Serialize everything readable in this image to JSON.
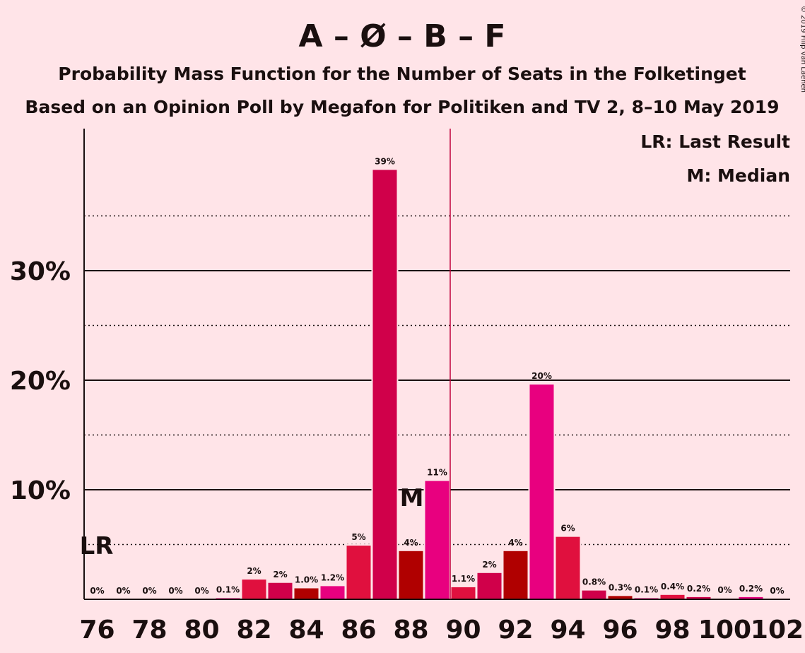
{
  "chart_data": {
    "type": "bar",
    "title": "A – Ø – B – F",
    "subtitle1": "Probability Mass Function for the Number of Seats in the Folketinget",
    "subtitle2": "Based on an Opinion Poll by Megafon for Politiken and TV 2, 8–10 May 2019",
    "copyright": "© 2019 Filip van Laenen",
    "legend": {
      "lr": "LR: Last Result",
      "m": "M: Median",
      "placement": "top-right"
    },
    "x": [
      76,
      77,
      78,
      79,
      80,
      81,
      82,
      83,
      84,
      85,
      86,
      87,
      88,
      89,
      90,
      91,
      92,
      93,
      94,
      95,
      96,
      97,
      98,
      99,
      100,
      101,
      102
    ],
    "values": [
      0,
      0,
      0,
      0,
      0,
      0.1,
      1.8,
      1.5,
      1.0,
      1.2,
      4.9,
      39.2,
      4.4,
      10.8,
      1.1,
      2.4,
      4.4,
      19.6,
      5.7,
      0.8,
      0.3,
      0.1,
      0.4,
      0.2,
      0.05,
      0.2,
      0
    ],
    "value_labels": [
      "0%",
      "0%",
      "0%",
      "0%",
      "0%",
      "0.1%",
      "2%",
      "2%",
      "1.0%",
      "1.2%",
      "5%",
      "39%",
      "4%",
      "11%",
      "1.1%",
      "2%",
      "4%",
      "20%",
      "6%",
      "0.8%",
      "0.3%",
      "0.1%",
      "0.4%",
      "0.2%",
      "0%",
      "0.2%",
      "0%"
    ],
    "x_tick_labels": [
      "76",
      "78",
      "80",
      "82",
      "84",
      "86",
      "88",
      "90",
      "92",
      "94",
      "96",
      "98",
      "100",
      "102"
    ],
    "y_tick_labels": [
      "10%",
      "20%",
      "30%"
    ],
    "y_ticks": [
      10,
      20,
      30
    ],
    "ylim": [
      0,
      43
    ],
    "majority_line_x": 89.5,
    "last_result_x": 76,
    "last_result_label": "LR",
    "median_x": 88,
    "median_label": "M",
    "colors": [
      "#b00000",
      "#e8007f",
      "#e0103e",
      "#d0004a"
    ]
  }
}
